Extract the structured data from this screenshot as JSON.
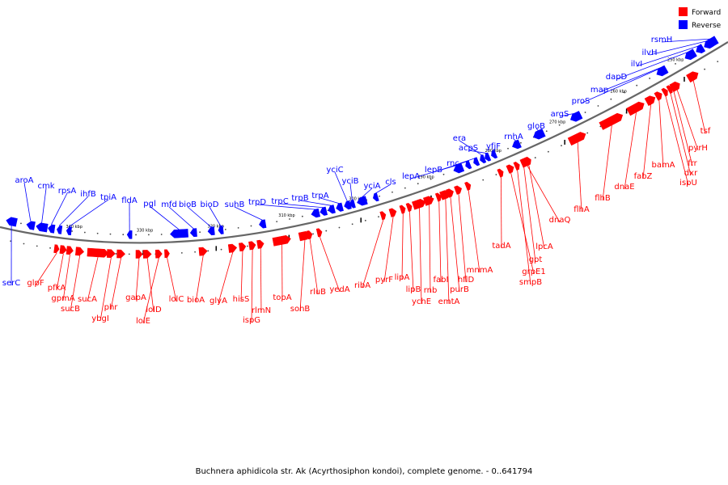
{
  "caption": "Buchnera aphidicola str. Ak (Acyrthosiphon kondoi), complete genome. - 0..641794",
  "legend": [
    {
      "label": "Forward",
      "color": "#ff0000"
    },
    {
      "label": "Reverse",
      "color": "#0000ff"
    }
  ],
  "colors": {
    "forward": "#ff0000",
    "reverse": "#0000ff",
    "line": "#999999",
    "backbone": "#666666"
  },
  "kbp_labels": [
    "340 kbp",
    "330 kbp",
    "320 kbp",
    "310 kbp",
    "300 kbp",
    "290 kbp",
    "280 kbp",
    "270 kbp",
    "260 kbp",
    "250 kbp"
  ],
  "reverse_genes": [
    "serC",
    "aroA",
    "cmk",
    "rpsA",
    "ihfB",
    "tpiA",
    "fldA",
    "pgl",
    "mfd",
    "bioB",
    "bioD",
    "suhB",
    "trpD",
    "trpC",
    "trpB",
    "trpA",
    "yciC",
    "yciB",
    "yciA",
    "cls",
    "lepA",
    "lepB",
    "rnc",
    "era",
    "acpS",
    "yfjF",
    "rnhA",
    "gloB",
    "argS",
    "proS",
    "map",
    "dapD",
    "ilvI",
    "ilvH",
    "rsmH"
  ],
  "forward_genes": [
    "glpF",
    "pfkA",
    "gpmA",
    "sucB",
    "sucA",
    "ybgI",
    "phr",
    "gapA",
    "lolD",
    "lolE",
    "lolC",
    "bioA",
    "glyA",
    "hisS",
    "ispG",
    "rlmN",
    "topA",
    "sohB",
    "rluB",
    "yedA",
    "ribA",
    "pyrF",
    "lipA",
    "lipB",
    "ychE",
    "rnb",
    "fabI",
    "emtA",
    "purB",
    "hflD",
    "mnmA",
    "tadA",
    "grpE1",
    "smpB",
    "gpt",
    "lpcA",
    "dnaQ",
    "flhA",
    "flhB",
    "dnaE",
    "fabZ",
    "bamA",
    "ispU",
    "dxr",
    "frr",
    "pyrH",
    "tsf"
  ]
}
